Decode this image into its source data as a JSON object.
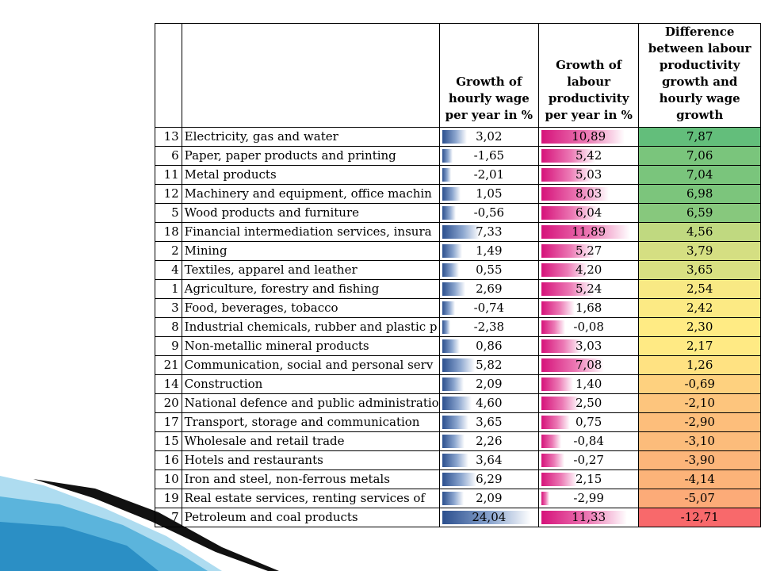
{
  "colors": {
    "wage_bar": "#2b4f8e",
    "productivity_bar": "#d6127a",
    "diff_high": "#63be7b",
    "diff_mid": "#ffeb84",
    "diff_low": "#f8696b"
  },
  "chart_data": {
    "type": "table",
    "columns": [
      "",
      "",
      "Growth of hourly wage per year in %",
      "Growth of labour productivity per year in %",
      "Difference between labour productivity growth and hourly wage growth"
    ],
    "rows": [
      {
        "id": "13",
        "sector": "Electricity, gas and water",
        "wage": "3,02",
        "productivity": "10,89",
        "difference": "7,87"
      },
      {
        "id": "6",
        "sector": "Paper, paper products and printing",
        "wage": "-1,65",
        "productivity": "5,42",
        "difference": "7,06"
      },
      {
        "id": "11",
        "sector": "Metal products",
        "wage": "-2,01",
        "productivity": "5,03",
        "difference": "7,04"
      },
      {
        "id": "12",
        "sector": "Machinery and equipment, office machin",
        "wage": "1,05",
        "productivity": "8,03",
        "difference": "6,98"
      },
      {
        "id": "5",
        "sector": "Wood products and furniture",
        "wage": "-0,56",
        "productivity": "6,04",
        "difference": "6,59"
      },
      {
        "id": "18",
        "sector": "Financial intermediation services, insura",
        "wage": "7,33",
        "productivity": "11,89",
        "difference": "4,56"
      },
      {
        "id": "2",
        "sector": "Mining",
        "wage": "1,49",
        "productivity": "5,27",
        "difference": "3,79"
      },
      {
        "id": "4",
        "sector": "Textiles, apparel and leather",
        "wage": "0,55",
        "productivity": "4,20",
        "difference": "3,65"
      },
      {
        "id": "1",
        "sector": "Agriculture, forestry and fishing",
        "wage": "2,69",
        "productivity": "5,24",
        "difference": "2,54"
      },
      {
        "id": "3",
        "sector": "Food, beverages, tobacco",
        "wage": "-0,74",
        "productivity": "1,68",
        "difference": "2,42"
      },
      {
        "id": "8",
        "sector": "Industrial chemicals, rubber and plastic p",
        "wage": "-2,38",
        "productivity": "-0,08",
        "difference": "2,30"
      },
      {
        "id": "9",
        "sector": "Non-metallic mineral products",
        "wage": "0,86",
        "productivity": "3,03",
        "difference": "2,17"
      },
      {
        "id": "21",
        "sector": "Communication, social and personal serv",
        "wage": "5,82",
        "productivity": "7,08",
        "difference": "1,26"
      },
      {
        "id": "14",
        "sector": "Construction",
        "wage": "2,09",
        "productivity": "1,40",
        "difference": "-0,69"
      },
      {
        "id": "20",
        "sector": "National defence and public administratio",
        "wage": "4,60",
        "productivity": "2,50",
        "difference": "-2,10"
      },
      {
        "id": "17",
        "sector": "Transport, storage and communication",
        "wage": "3,65",
        "productivity": "0,75",
        "difference": "-2,90"
      },
      {
        "id": "15",
        "sector": "Wholesale and retail trade",
        "wage": "2,26",
        "productivity": "-0,84",
        "difference": "-3,10"
      },
      {
        "id": "16",
        "sector": "Hotels and restaurants",
        "wage": "3,64",
        "productivity": "-0,27",
        "difference": "-3,90"
      },
      {
        "id": "10",
        "sector": "Iron and steel, non-ferrous metals",
        "wage": "6,29",
        "productivity": "2,15",
        "difference": "-4,14"
      },
      {
        "id": "19",
        "sector": "Real estate services, renting services of",
        "wage": "2,09",
        "productivity": "-2,99",
        "difference": "-5,07"
      },
      {
        "id": "7",
        "sector": "Petroleum and coal products",
        "wage": "24,04",
        "productivity": "11,33",
        "difference": "-12,71"
      }
    ]
  }
}
